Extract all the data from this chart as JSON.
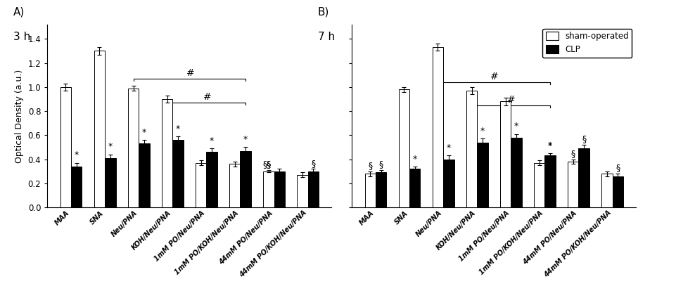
{
  "panel_A_label": "A)",
  "panel_A_time": "3 h",
  "panel_B_label": "B)",
  "panel_B_time": "7 h",
  "categories": [
    "MAA",
    "SNA",
    "Neu/PNA",
    "KOH/Neu/PNA",
    "1mM PO/Neu/PNA",
    "1mM PO/KOH/Neu/PNA",
    "44mM PO/Neu/PNA",
    "44mM PO/KOH/Neu/PNA"
  ],
  "A_sham": [
    1.0,
    1.3,
    0.99,
    0.9,
    0.37,
    0.36,
    0.3,
    0.27
  ],
  "A_sham_err": [
    0.03,
    0.03,
    0.02,
    0.03,
    0.02,
    0.02,
    0.01,
    0.02
  ],
  "A_clp": [
    0.34,
    0.41,
    0.53,
    0.56,
    0.46,
    0.47,
    0.3,
    0.3
  ],
  "A_clp_err": [
    0.03,
    0.03,
    0.03,
    0.03,
    0.03,
    0.03,
    0.02,
    0.02
  ],
  "B_sham": [
    0.28,
    0.98,
    1.33,
    0.97,
    0.88,
    0.37,
    0.38,
    0.28
  ],
  "B_sham_err": [
    0.02,
    0.02,
    0.03,
    0.03,
    0.03,
    0.02,
    0.02,
    0.02
  ],
  "B_clp": [
    0.29,
    0.32,
    0.4,
    0.54,
    0.58,
    0.43,
    0.49,
    0.26
  ],
  "B_clp_err": [
    0.02,
    0.02,
    0.03,
    0.03,
    0.03,
    0.02,
    0.03,
    0.02
  ],
  "ylabel": "Optical Density (a.u.)",
  "ylim": [
    0.0,
    1.52
  ],
  "yticks": [
    0.0,
    0.2,
    0.4,
    0.6,
    0.8,
    1.0,
    1.2,
    1.4
  ],
  "legend_sham": "sham-operated",
  "legend_clp": "CLP",
  "bar_width": 0.32,
  "sham_color": "white",
  "clp_color": "black",
  "edgecolor": "black"
}
